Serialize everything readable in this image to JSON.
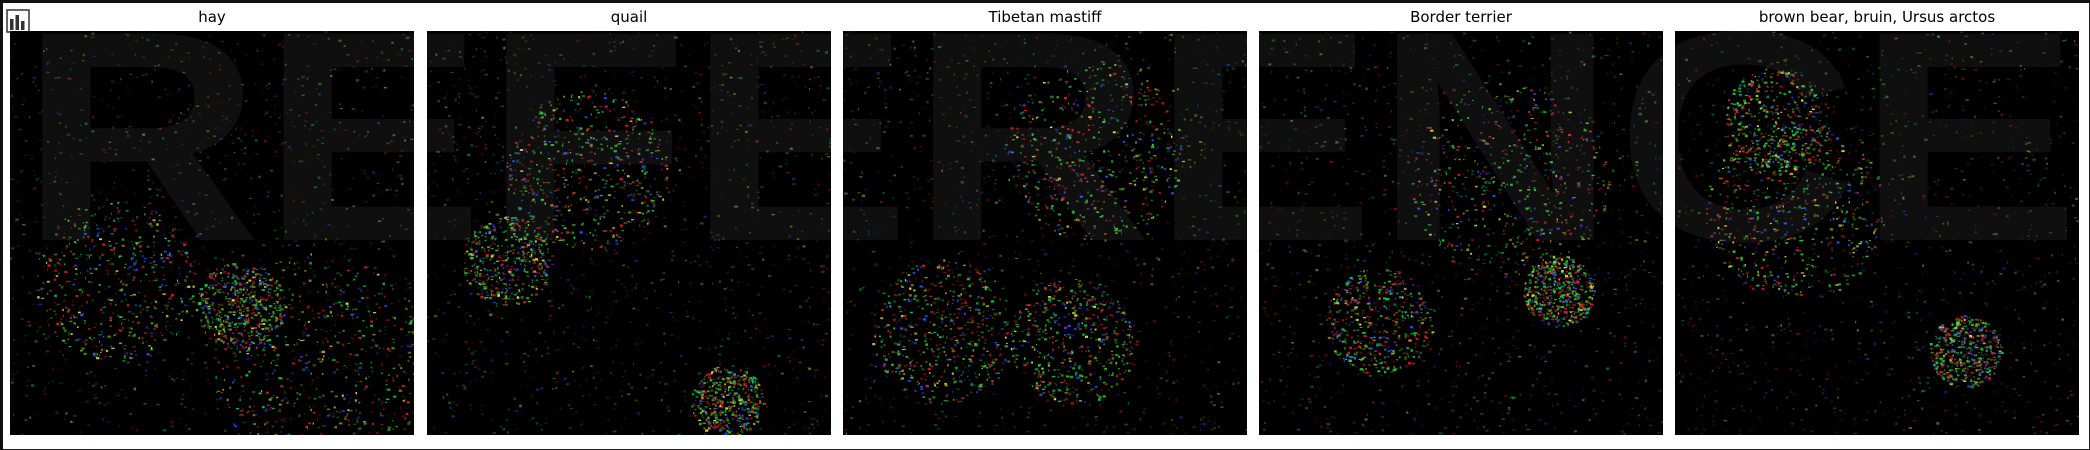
{
  "toolbar": {
    "icon": "bar-chart-icon"
  },
  "panels": [
    {
      "title": "hay"
    },
    {
      "title": "quail"
    },
    {
      "title": "Tibetan mastiff"
    },
    {
      "title": "Border terrier"
    },
    {
      "title": "brown bear, bruin, Ursus arctos"
    }
  ],
  "watermark": {
    "text": "REFERENCE"
  },
  "colors": {
    "panel_background": "#000000",
    "noise_green": "#2ecc40",
    "noise_red": "#d62020",
    "noise_yellow": "#e8e84a",
    "noise_blue": "#3050ff"
  }
}
